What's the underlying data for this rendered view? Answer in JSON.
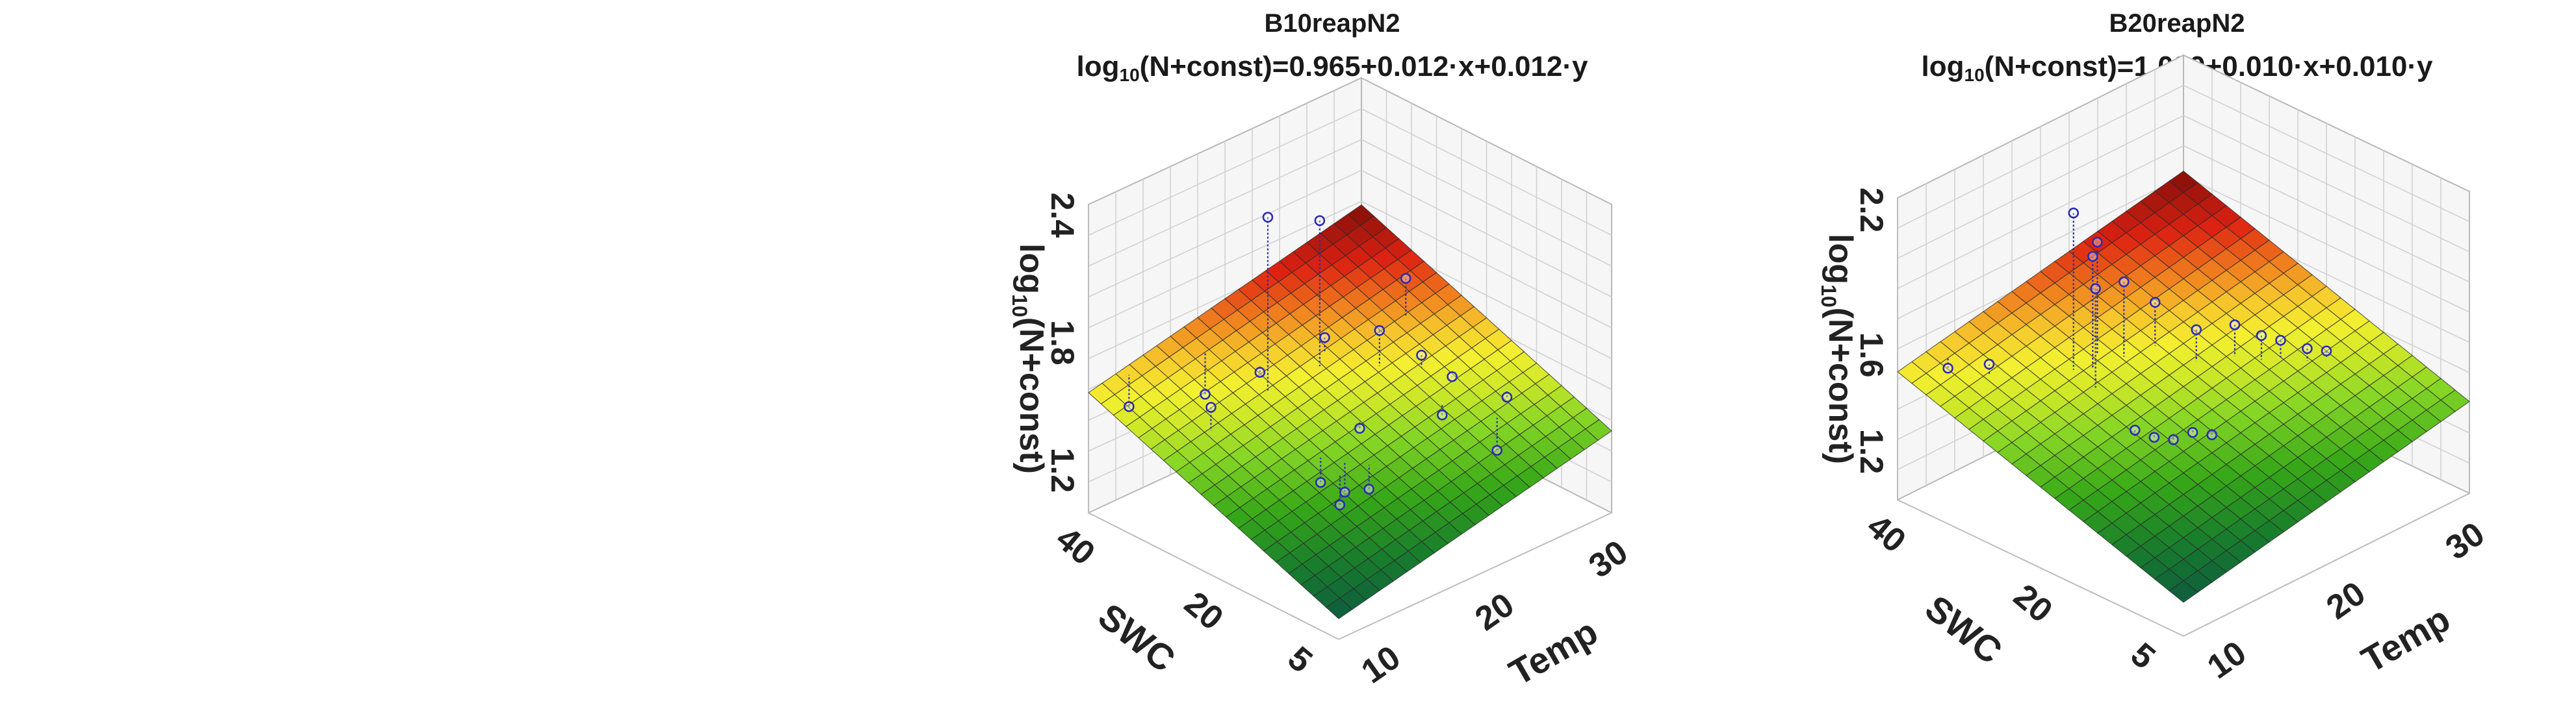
{
  "chart_data": [
    {
      "type": "surface",
      "title": "B10reapN2",
      "equation": {
        "lhs_log": "log",
        "lhs_base": "10",
        "lhs_arg": "(N+const)",
        "rhs": "=0.965+0.012·x+0.012·y"
      },
      "xlabel": "Temp",
      "ylabel": "SWC",
      "zlabel": {
        "log": "log",
        "base": "10",
        "arg": "(N+const)"
      },
      "x_ticks": [
        "10",
        "20",
        "30"
      ],
      "y_ticks": [
        "5",
        "20",
        "40"
      ],
      "z_ticks": [
        "1.2",
        "1.8",
        "2.4"
      ],
      "xlim": [
        8,
        32
      ],
      "ylim": [
        3,
        42
      ],
      "zlim": [
        1.0,
        2.45
      ],
      "grid": true,
      "surface": {
        "intercept": 0.965,
        "coef_x": 0.012,
        "coef_y": 0.012
      },
      "points": [
        {
          "x": 17,
          "y": 30,
          "z": 2.35
        },
        {
          "x": 21,
          "y": 29,
          "z": 2.25
        },
        {
          "x": 12,
          "y": 30,
          "z": 1.58
        },
        {
          "x": 16,
          "y": 38,
          "z": 1.42
        },
        {
          "x": 11,
          "y": 41,
          "z": 1.44
        },
        {
          "x": 18,
          "y": 33,
          "z": 1.55
        },
        {
          "x": 16,
          "y": 20,
          "z": 1.28
        },
        {
          "x": 17,
          "y": 18,
          "z": 1.24
        },
        {
          "x": 16,
          "y": 17,
          "z": 1.22
        },
        {
          "x": 18,
          "y": 16,
          "z": 1.26
        },
        {
          "x": 20,
          "y": 21,
          "z": 1.42
        },
        {
          "x": 24,
          "y": 25,
          "z": 1.72
        },
        {
          "x": 28,
          "y": 28,
          "z": 1.82
        },
        {
          "x": 26,
          "y": 22,
          "z": 1.6
        },
        {
          "x": 27,
          "y": 19,
          "z": 1.52
        },
        {
          "x": 25,
          "y": 17,
          "z": 1.42
        },
        {
          "x": 29,
          "y": 14,
          "z": 1.45
        },
        {
          "x": 27,
          "y": 12,
          "z": 1.28
        },
        {
          "x": 22,
          "y": 30,
          "z": 1.66
        }
      ]
    },
    {
      "type": "surface",
      "title": "B20reapN2",
      "equation": {
        "lhs_log": "log",
        "lhs_base": "10",
        "lhs_arg": "(N+const)",
        "rhs": "=1.030+0.010·x+0.010·y"
      },
      "xlabel": "Temp",
      "ylabel": "SWC",
      "zlabel": {
        "log": "log",
        "base": "10",
        "arg": "(N+const)"
      },
      "x_ticks": [
        "10",
        "20",
        "30"
      ],
      "y_ticks": [
        "5",
        "20",
        "40"
      ],
      "z_ticks": [
        "1.2",
        "1.6",
        "2.2"
      ],
      "xlim": [
        8,
        32
      ],
      "ylim": [
        3,
        42
      ],
      "zlim": [
        1.0,
        2.25
      ],
      "grid": true,
      "surface": {
        "intercept": 1.03,
        "coef_x": 0.01,
        "coef_y": 0.01
      },
      "points": [
        {
          "x": 16,
          "y": 31,
          "z": 2.15
        },
        {
          "x": 17,
          "y": 30,
          "z": 1.96
        },
        {
          "x": 18,
          "y": 31,
          "z": 1.98
        },
        {
          "x": 16,
          "y": 28,
          "z": 1.88
        },
        {
          "x": 19,
          "y": 29,
          "z": 1.82
        },
        {
          "x": 12,
          "y": 36,
          "z": 1.55
        },
        {
          "x": 11,
          "y": 40,
          "z": 1.5
        },
        {
          "x": 15,
          "y": 21,
          "z": 1.42
        },
        {
          "x": 16,
          "y": 20,
          "z": 1.38
        },
        {
          "x": 17,
          "y": 19,
          "z": 1.36
        },
        {
          "x": 18,
          "y": 18,
          "z": 1.38
        },
        {
          "x": 19,
          "y": 17,
          "z": 1.36
        },
        {
          "x": 22,
          "y": 24,
          "z": 1.62
        },
        {
          "x": 24,
          "y": 22,
          "z": 1.62
        },
        {
          "x": 25,
          "y": 20,
          "z": 1.58
        },
        {
          "x": 26,
          "y": 19,
          "z": 1.55
        },
        {
          "x": 27,
          "y": 17,
          "z": 1.52
        },
        {
          "x": 28,
          "y": 16,
          "z": 1.5
        },
        {
          "x": 21,
          "y": 28,
          "z": 1.7
        }
      ]
    }
  ]
}
